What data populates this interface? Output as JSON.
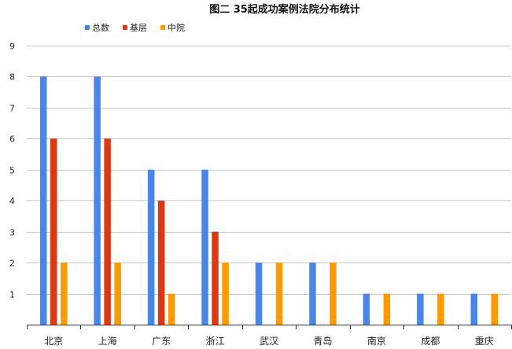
{
  "chart_data": {
    "type": "bar",
    "title": "图二 35起成功案例法院分布统计",
    "categories": [
      "北京",
      "上海",
      "广东",
      "浙江",
      "武汉",
      "青岛",
      "南京",
      "成都",
      "重庆"
    ],
    "series": [
      {
        "name": "总数",
        "color": "#4a86e8",
        "values": [
          8,
          8,
          5,
          5,
          2,
          2,
          1,
          1,
          1
        ]
      },
      {
        "name": "基层",
        "color": "#dc3912",
        "values": [
          6,
          6,
          4,
          3,
          0,
          0,
          0,
          0,
          0
        ]
      },
      {
        "name": "中院",
        "color": "#ff9900",
        "values": [
          2,
          2,
          1,
          2,
          2,
          2,
          1,
          1,
          1
        ]
      }
    ],
    "ylim": [
      0,
      9
    ],
    "yticks": [
      1,
      2,
      3,
      4,
      5,
      6,
      7,
      8,
      9
    ],
    "grid": true,
    "legend_position": "top-left",
    "xlabel": "",
    "ylabel": ""
  }
}
